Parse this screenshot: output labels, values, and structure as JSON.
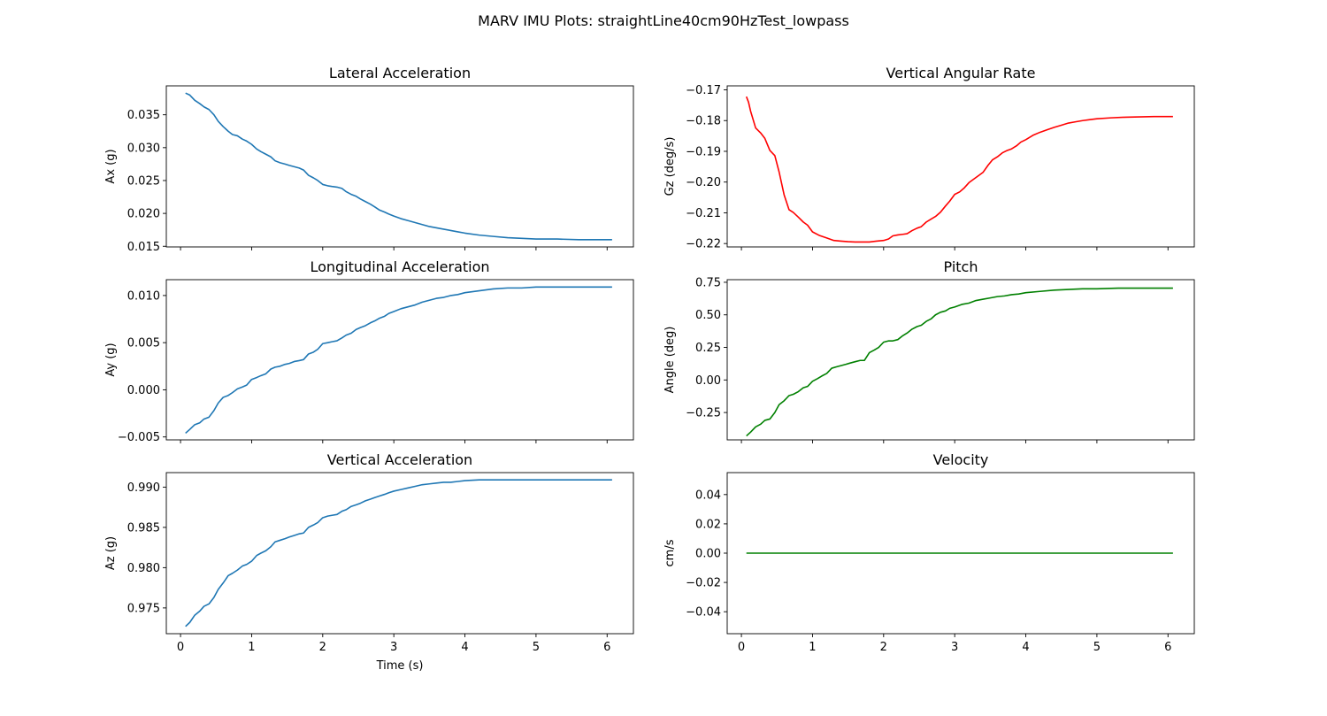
{
  "figure_title": "MARV IMU Plots: straightLine40cm90HzTest_lowpass",
  "chart_data": [
    {
      "type": "line",
      "title": "Lateral Acceleration",
      "xlabel": "",
      "ylabel": "Ax (g)",
      "xlim": [
        -0.2,
        6.37
      ],
      "ylim": [
        0.0149,
        0.0394
      ],
      "xticks": [
        0,
        1,
        2,
        3,
        4,
        5,
        6
      ],
      "xtick_labels_visible": false,
      "yticks": [
        0.015,
        0.02,
        0.025,
        0.03,
        0.035
      ],
      "ytick_labels": [
        "0.015",
        "0.020",
        "0.025",
        "0.030",
        "0.035"
      ],
      "color": "#1f77b4",
      "series": [
        {
          "x": [
            0.07,
            0.13,
            0.2,
            0.27,
            0.33,
            0.4,
            0.47,
            0.53,
            0.6,
            0.67,
            0.73,
            0.8,
            0.87,
            0.93,
            1.0,
            1.07,
            1.13,
            1.2,
            1.27,
            1.33,
            1.4,
            1.47,
            1.53,
            1.6,
            1.67,
            1.73,
            1.8,
            1.87,
            1.93,
            2.0,
            2.07,
            2.13,
            2.2,
            2.27,
            2.33,
            2.4,
            2.47,
            2.53,
            2.6,
            2.67,
            2.73,
            2.8,
            2.87,
            2.93,
            3.0,
            3.1,
            3.2,
            3.3,
            3.4,
            3.5,
            3.6,
            3.7,
            3.8,
            3.9,
            4.0,
            4.2,
            4.4,
            4.6,
            4.8,
            5.0,
            5.3,
            5.6,
            6.07
          ],
          "y": [
            0.0383,
            0.038,
            0.0372,
            0.0367,
            0.0362,
            0.0358,
            0.035,
            0.034,
            0.0332,
            0.0325,
            0.032,
            0.0318,
            0.0313,
            0.031,
            0.0305,
            0.0298,
            0.0294,
            0.029,
            0.0286,
            0.028,
            0.0277,
            0.0275,
            0.0273,
            0.0271,
            0.0269,
            0.0266,
            0.0258,
            0.0254,
            0.025,
            0.0244,
            0.0242,
            0.0241,
            0.024,
            0.0238,
            0.0233,
            0.0229,
            0.0226,
            0.0222,
            0.0218,
            0.0214,
            0.021,
            0.0205,
            0.0202,
            0.0199,
            0.0196,
            0.0192,
            0.0189,
            0.0186,
            0.0183,
            0.018,
            0.0178,
            0.0176,
            0.0174,
            0.0172,
            0.017,
            0.0167,
            0.0165,
            0.0163,
            0.0162,
            0.0161,
            0.0161,
            0.016,
            0.016
          ]
        }
      ]
    },
    {
      "type": "line",
      "title": "Vertical Angular Rate",
      "xlabel": "",
      "ylabel": "Gz (deg/s)",
      "xlim": [
        -0.2,
        6.37
      ],
      "ylim": [
        -0.2211,
        -0.1687
      ],
      "xticks": [
        0,
        1,
        2,
        3,
        4,
        5,
        6
      ],
      "xtick_labels_visible": false,
      "yticks": [
        -0.22,
        -0.21,
        -0.2,
        -0.19,
        -0.18,
        -0.17
      ],
      "ytick_labels": [
        "−0.22",
        "−0.21",
        "−0.20",
        "−0.19",
        "−0.18",
        "−0.17"
      ],
      "color": "#ff0000",
      "series": [
        {
          "x": [
            0.07,
            0.1,
            0.13,
            0.2,
            0.27,
            0.33,
            0.4,
            0.47,
            0.53,
            0.6,
            0.67,
            0.73,
            0.8,
            0.87,
            0.93,
            1.0,
            1.1,
            1.2,
            1.3,
            1.4,
            1.5,
            1.6,
            1.7,
            1.8,
            1.9,
            2.0,
            2.07,
            2.13,
            2.2,
            2.27,
            2.33,
            2.4,
            2.47,
            2.53,
            2.6,
            2.67,
            2.73,
            2.8,
            2.87,
            2.93,
            3.0,
            3.07,
            3.13,
            3.2,
            3.27,
            3.33,
            3.4,
            3.47,
            3.53,
            3.6,
            3.67,
            3.73,
            3.8,
            3.87,
            3.93,
            4.0,
            4.1,
            4.2,
            4.3,
            4.4,
            4.5,
            4.6,
            4.7,
            4.8,
            4.9,
            5.0,
            5.2,
            5.4,
            5.6,
            5.8,
            6.07
          ],
          "y": [
            -0.1722,
            -0.174,
            -0.177,
            -0.1824,
            -0.184,
            -0.1858,
            -0.1897,
            -0.1914,
            -0.1967,
            -0.2041,
            -0.209,
            -0.2099,
            -0.2114,
            -0.213,
            -0.214,
            -0.2162,
            -0.2174,
            -0.2182,
            -0.219,
            -0.2192,
            -0.2194,
            -0.2195,
            -0.2195,
            -0.2195,
            -0.2192,
            -0.219,
            -0.2185,
            -0.2175,
            -0.2172,
            -0.217,
            -0.2168,
            -0.2158,
            -0.215,
            -0.2145,
            -0.213,
            -0.212,
            -0.2112,
            -0.2098,
            -0.2078,
            -0.2062,
            -0.204,
            -0.2032,
            -0.202,
            -0.2002,
            -0.199,
            -0.198,
            -0.1968,
            -0.1945,
            -0.1928,
            -0.1918,
            -0.1905,
            -0.1898,
            -0.1892,
            -0.1882,
            -0.187,
            -0.1862,
            -0.1848,
            -0.1838,
            -0.183,
            -0.1822,
            -0.1815,
            -0.1808,
            -0.1804,
            -0.18,
            -0.1797,
            -0.1794,
            -0.1791,
            -0.1789,
            -0.1788,
            -0.1787,
            -0.1787
          ]
        }
      ]
    },
    {
      "type": "line",
      "title": "Longitudinal Acceleration",
      "xlabel": "",
      "ylabel": "Ay (g)",
      "xlim": [
        -0.2,
        6.37
      ],
      "ylim": [
        -0.00531,
        0.01168
      ],
      "xticks": [
        0,
        1,
        2,
        3,
        4,
        5,
        6
      ],
      "xtick_labels_visible": false,
      "yticks": [
        -0.005,
        0.0,
        0.005,
        0.01
      ],
      "ytick_labels": [
        "−0.005",
        "0.000",
        "0.005",
        "0.010"
      ],
      "color": "#1f77b4",
      "series": [
        {
          "x": [
            0.07,
            0.13,
            0.2,
            0.27,
            0.33,
            0.4,
            0.47,
            0.53,
            0.6,
            0.67,
            0.73,
            0.8,
            0.87,
            0.93,
            1.0,
            1.07,
            1.13,
            1.2,
            1.27,
            1.33,
            1.4,
            1.47,
            1.53,
            1.6,
            1.67,
            1.73,
            1.8,
            1.87,
            1.93,
            2.0,
            2.07,
            2.13,
            2.2,
            2.27,
            2.33,
            2.4,
            2.47,
            2.53,
            2.6,
            2.67,
            2.73,
            2.8,
            2.87,
            2.93,
            3.0,
            3.1,
            3.2,
            3.3,
            3.4,
            3.5,
            3.6,
            3.7,
            3.8,
            3.9,
            4.0,
            4.2,
            4.4,
            4.6,
            4.8,
            5.0,
            5.3,
            5.6,
            6.07
          ],
          "y": [
            -0.0046,
            -0.0042,
            -0.0037,
            -0.0035,
            -0.0031,
            -0.0029,
            -0.0022,
            -0.0014,
            -0.0008,
            -0.0006,
            -0.0003,
            0.0001,
            0.0003,
            0.0005,
            0.0011,
            0.0013,
            0.0015,
            0.0017,
            0.0022,
            0.0024,
            0.0025,
            0.0027,
            0.0028,
            0.003,
            0.0031,
            0.0032,
            0.0038,
            0.004,
            0.0043,
            0.0049,
            0.005,
            0.0051,
            0.0052,
            0.0055,
            0.0058,
            0.006,
            0.0064,
            0.0066,
            0.0068,
            0.0071,
            0.0073,
            0.0076,
            0.0078,
            0.0081,
            0.0083,
            0.0086,
            0.0088,
            0.009,
            0.0093,
            0.0095,
            0.0097,
            0.0098,
            0.01,
            0.0101,
            0.0103,
            0.0105,
            0.0107,
            0.0108,
            0.0108,
            0.0109,
            0.0109,
            0.0109,
            0.0109
          ]
        }
      ]
    },
    {
      "type": "line",
      "title": "Pitch",
      "xlabel": "",
      "ylabel": "Angle (deg)",
      "xlim": [
        -0.2,
        6.37
      ],
      "ylim": [
        -0.46,
        0.77
      ],
      "xticks": [
        0,
        1,
        2,
        3,
        4,
        5,
        6
      ],
      "xtick_labels_visible": false,
      "yticks": [
        -0.25,
        0.0,
        0.25,
        0.5,
        0.75
      ],
      "ytick_labels": [
        "−0.25",
        "0.00",
        "0.25",
        "0.50",
        "0.75"
      ],
      "color": "#008000",
      "series": [
        {
          "x": [
            0.07,
            0.13,
            0.2,
            0.27,
            0.33,
            0.4,
            0.47,
            0.53,
            0.6,
            0.67,
            0.73,
            0.8,
            0.87,
            0.93,
            1.0,
            1.07,
            1.13,
            1.2,
            1.27,
            1.33,
            1.4,
            1.47,
            1.53,
            1.6,
            1.67,
            1.73,
            1.8,
            1.87,
            1.93,
            2.0,
            2.07,
            2.13,
            2.2,
            2.27,
            2.33,
            2.4,
            2.47,
            2.53,
            2.6,
            2.67,
            2.73,
            2.8,
            2.87,
            2.93,
            3.0,
            3.1,
            3.2,
            3.3,
            3.4,
            3.5,
            3.6,
            3.7,
            3.8,
            3.9,
            4.0,
            4.2,
            4.4,
            4.6,
            4.8,
            5.0,
            5.3,
            5.6,
            6.07
          ],
          "y": [
            -0.43,
            -0.4,
            -0.36,
            -0.34,
            -0.31,
            -0.3,
            -0.25,
            -0.19,
            -0.16,
            -0.12,
            -0.11,
            -0.09,
            -0.06,
            -0.05,
            -0.01,
            0.01,
            0.03,
            0.05,
            0.09,
            0.1,
            0.11,
            0.12,
            0.13,
            0.14,
            0.15,
            0.15,
            0.21,
            0.23,
            0.25,
            0.29,
            0.3,
            0.3,
            0.31,
            0.34,
            0.36,
            0.39,
            0.41,
            0.42,
            0.45,
            0.47,
            0.5,
            0.52,
            0.53,
            0.55,
            0.56,
            0.58,
            0.59,
            0.61,
            0.62,
            0.63,
            0.64,
            0.645,
            0.655,
            0.66,
            0.67,
            0.68,
            0.69,
            0.695,
            0.7,
            0.7,
            0.705,
            0.705,
            0.705
          ]
        }
      ]
    },
    {
      "type": "line",
      "title": "Vertical Acceleration",
      "xlabel": "Time (s)",
      "ylabel": "Az (g)",
      "xlim": [
        -0.2,
        6.37
      ],
      "ylim": [
        0.9718,
        0.9918
      ],
      "xticks": [
        0,
        1,
        2,
        3,
        4,
        5,
        6
      ],
      "xtick_labels": [
        "0",
        "1",
        "2",
        "3",
        "4",
        "5",
        "6"
      ],
      "xtick_labels_visible": true,
      "yticks": [
        0.975,
        0.98,
        0.985,
        0.99
      ],
      "ytick_labels": [
        "0.975",
        "0.980",
        "0.985",
        "0.990"
      ],
      "color": "#1f77b4",
      "series": [
        {
          "x": [
            0.07,
            0.13,
            0.2,
            0.27,
            0.33,
            0.4,
            0.47,
            0.53,
            0.6,
            0.67,
            0.73,
            0.8,
            0.87,
            0.93,
            1.0,
            1.07,
            1.13,
            1.2,
            1.27,
            1.33,
            1.4,
            1.47,
            1.53,
            1.6,
            1.67,
            1.73,
            1.8,
            1.87,
            1.93,
            2.0,
            2.07,
            2.13,
            2.2,
            2.27,
            2.33,
            2.4,
            2.47,
            2.53,
            2.6,
            2.67,
            2.73,
            2.8,
            2.87,
            2.93,
            3.0,
            3.1,
            3.2,
            3.3,
            3.4,
            3.5,
            3.6,
            3.7,
            3.8,
            3.9,
            4.0,
            4.2,
            4.4,
            4.6,
            4.8,
            5.0,
            5.3,
            5.6,
            6.07
          ],
          "y": [
            0.9727,
            0.9732,
            0.9741,
            0.9746,
            0.9752,
            0.9755,
            0.9763,
            0.9773,
            0.9781,
            0.979,
            0.9793,
            0.9797,
            0.9802,
            0.9804,
            0.9808,
            0.9815,
            0.9818,
            0.9821,
            0.9826,
            0.9832,
            0.9834,
            0.9836,
            0.9838,
            0.984,
            0.9842,
            0.9843,
            0.985,
            0.9853,
            0.9856,
            0.9862,
            0.9864,
            0.9865,
            0.9866,
            0.987,
            0.9872,
            0.9876,
            0.9878,
            0.988,
            0.9883,
            0.9885,
            0.9887,
            0.9889,
            0.9891,
            0.9893,
            0.9895,
            0.9897,
            0.9899,
            0.9901,
            0.9903,
            0.9904,
            0.9905,
            0.9906,
            0.9906,
            0.9907,
            0.9908,
            0.9909,
            0.9909,
            0.9909,
            0.9909,
            0.9909,
            0.9909,
            0.9909,
            0.9909
          ]
        }
      ]
    },
    {
      "type": "line",
      "title": "Velocity",
      "xlabel": "",
      "ylabel": "cm/s",
      "xlim": [
        -0.2,
        6.37
      ],
      "ylim": [
        -0.055,
        0.055
      ],
      "xticks": [
        0,
        1,
        2,
        3,
        4,
        5,
        6
      ],
      "xtick_labels": [
        "0",
        "1",
        "2",
        "3",
        "4",
        "5",
        "6"
      ],
      "xtick_labels_visible": true,
      "yticks": [
        -0.04,
        -0.02,
        0.0,
        0.02,
        0.04
      ],
      "ytick_labels": [
        "−0.04",
        "−0.02",
        "0.00",
        "0.02",
        "0.04"
      ],
      "color": "#008000",
      "series": [
        {
          "x": [
            0.07,
            6.07
          ],
          "y": [
            0.0,
            0.0
          ]
        }
      ]
    }
  ]
}
